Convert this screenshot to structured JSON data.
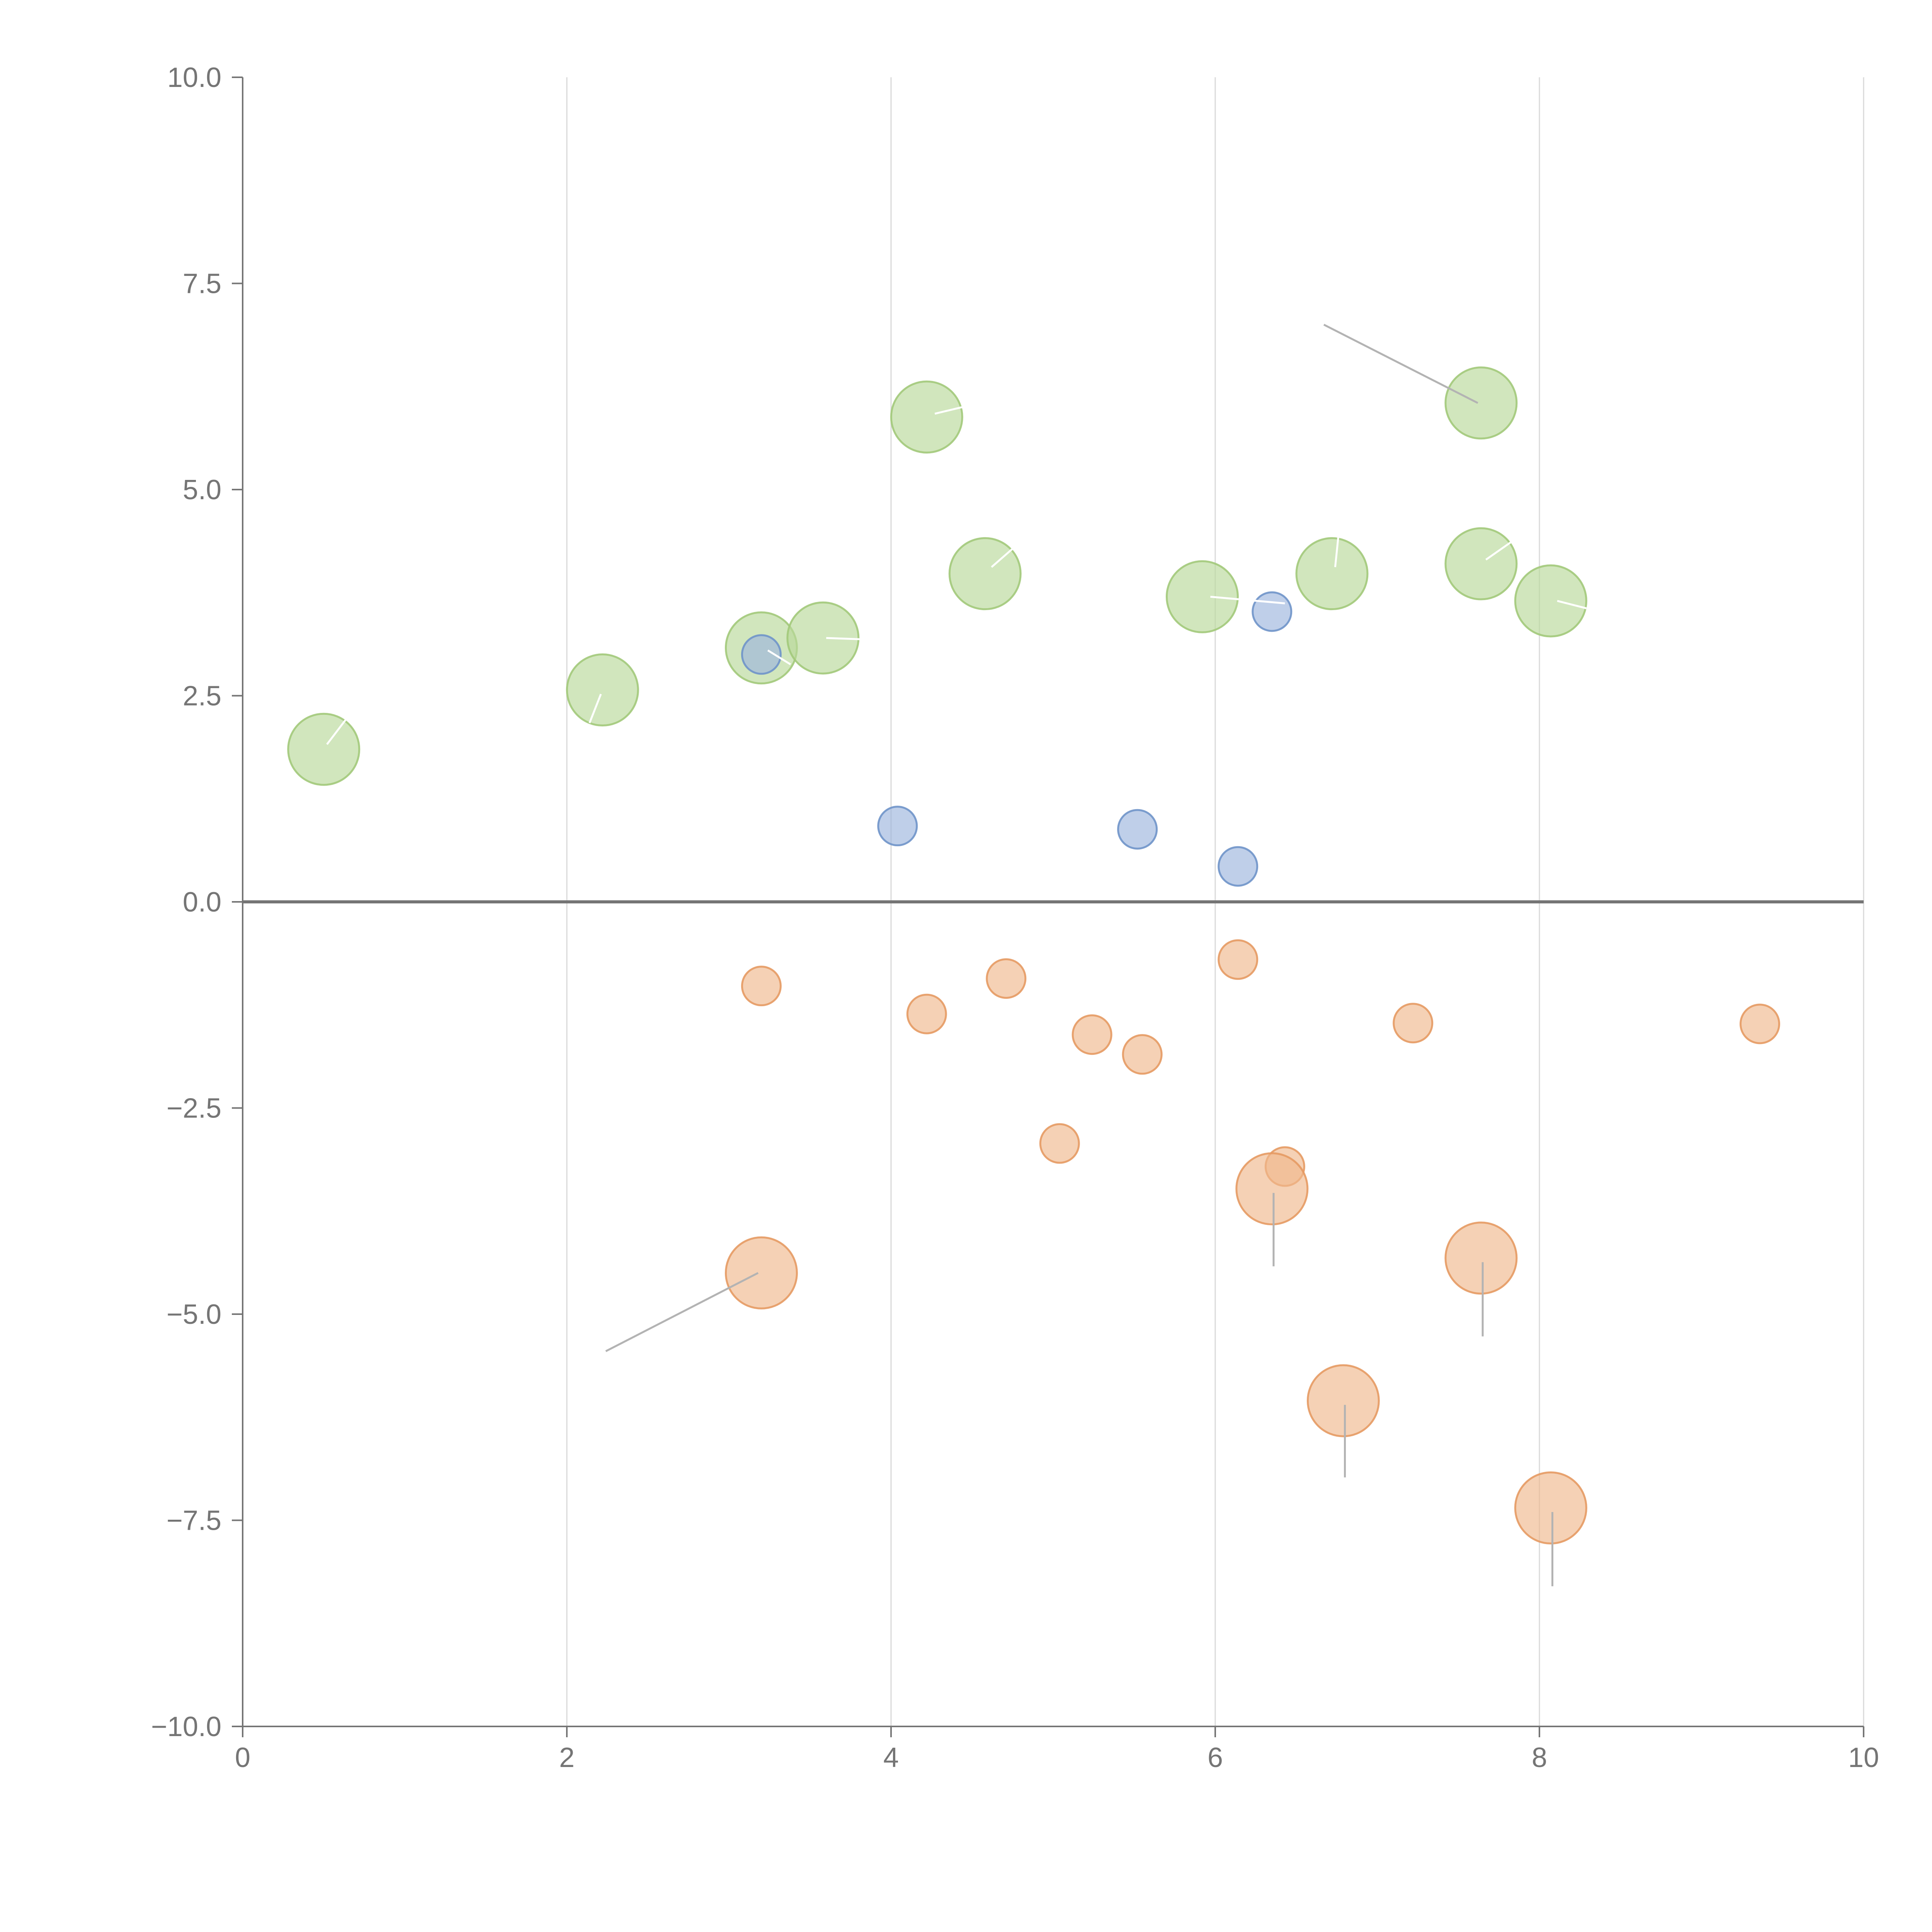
{
  "chart_data": {
    "type": "scatter",
    "title": "",
    "xlabel": "",
    "ylabel": "",
    "xlim": [
      0,
      10
    ],
    "ylim": [
      -10,
      10
    ],
    "grid": "vertical",
    "x_ticks": [
      0,
      2,
      4,
      6,
      8,
      10
    ],
    "y_ticks": [
      10.0,
      7.5,
      5.0,
      2.5,
      0.0,
      -2.5,
      -5.0,
      -7.5,
      -10.0
    ],
    "x_tick_labels": [
      "0",
      "2",
      "4",
      "6",
      "8",
      "10"
    ],
    "y_tick_labels": [
      "10.0",
      "7.5",
      "5.0",
      "2.5",
      "0.0",
      "−2.5",
      "−5.0",
      "−7.5",
      "−10.0"
    ],
    "colors": {
      "green": "#b9d89a",
      "green_stroke": "#a2c97a",
      "blue": "#9db6dd",
      "blue_stroke": "#6f93c9",
      "orange": "#efb88e",
      "orange_stroke": "#e59a63",
      "axis": "#757575",
      "grid": "#d9d9d9",
      "inner_line": "#ffffff",
      "connector": "#b3b3b3"
    },
    "series": [
      {
        "name": "green",
        "size": "large",
        "points": [
          {
            "x": 0.5,
            "y": 1.85
          },
          {
            "x": 2.22,
            "y": 2.57
          },
          {
            "x": 3.2,
            "y": 3.08
          },
          {
            "x": 3.58,
            "y": 3.2
          },
          {
            "x": 4.22,
            "y": 5.88
          },
          {
            "x": 4.58,
            "y": 3.98
          },
          {
            "x": 5.92,
            "y": 3.7
          },
          {
            "x": 6.72,
            "y": 3.98
          },
          {
            "x": 7.64,
            "y": 6.05
          },
          {
            "x": 7.64,
            "y": 4.1
          },
          {
            "x": 8.07,
            "y": 3.65
          }
        ]
      },
      {
        "name": "blue",
        "size": "small",
        "points": [
          {
            "x": 3.2,
            "y": 3.0
          },
          {
            "x": 4.04,
            "y": 0.92
          },
          {
            "x": 5.52,
            "y": 0.88
          },
          {
            "x": 6.14,
            "y": 0.43
          },
          {
            "x": 6.35,
            "y": 3.52
          }
        ]
      },
      {
        "name": "orange_small",
        "size": "small",
        "points": [
          {
            "x": 3.2,
            "y": -1.02
          },
          {
            "x": 4.22,
            "y": -1.36
          },
          {
            "x": 4.71,
            "y": -0.93
          },
          {
            "x": 5.04,
            "y": -2.93
          },
          {
            "x": 5.24,
            "y": -1.61
          },
          {
            "x": 5.55,
            "y": -1.85
          },
          {
            "x": 6.14,
            "y": -0.7
          },
          {
            "x": 6.43,
            "y": -3.21
          },
          {
            "x": 7.22,
            "y": -1.47
          },
          {
            "x": 9.36,
            "y": -1.48
          }
        ]
      },
      {
        "name": "orange_large",
        "size": "large",
        "points": [
          {
            "x": 3.2,
            "y": -4.5
          },
          {
            "x": 6.35,
            "y": -3.48
          },
          {
            "x": 6.79,
            "y": -6.05
          },
          {
            "x": 7.64,
            "y": -4.32
          },
          {
            "x": 8.07,
            "y": -7.35
          }
        ]
      }
    ],
    "inner_lines": [
      {
        "x1": 0.52,
        "y1": 1.91,
        "x2": 0.64,
        "y2": 2.22
      },
      {
        "x1": 2.14,
        "y1": 2.17,
        "x2": 2.21,
        "y2": 2.52
      },
      {
        "x1": 3.24,
        "y1": 3.05,
        "x2": 3.38,
        "y2": 2.88
      },
      {
        "x1": 3.6,
        "y1": 3.2,
        "x2": 3.88,
        "y2": 3.18
      },
      {
        "x1": 4.27,
        "y1": 5.92,
        "x2": 4.44,
        "y2": 6.0
      },
      {
        "x1": 4.62,
        "y1": 4.06,
        "x2": 4.76,
        "y2": 4.3
      },
      {
        "x1": 5.97,
        "y1": 3.7,
        "x2": 6.43,
        "y2": 3.62
      },
      {
        "x1": 6.74,
        "y1": 4.06,
        "x2": 6.76,
        "y2": 4.44
      },
      {
        "x1": 7.67,
        "y1": 4.15,
        "x2": 7.83,
        "y2": 4.37
      },
      {
        "x1": 8.11,
        "y1": 3.65,
        "x2": 8.29,
        "y2": 3.56
      }
    ],
    "connectors": [
      {
        "x1": 6.67,
        "y1": 7.0,
        "x2": 7.62,
        "y2": 6.05
      },
      {
        "x1": 2.24,
        "y1": -5.45,
        "x2": 3.18,
        "y2": -4.5
      },
      {
        "x1": 6.36,
        "y1": -3.53,
        "x2": 6.36,
        "y2": -4.42
      },
      {
        "x1": 7.65,
        "y1": -4.37,
        "x2": 7.65,
        "y2": -5.27
      },
      {
        "x1": 6.8,
        "y1": -6.1,
        "x2": 6.8,
        "y2": -6.98
      },
      {
        "x1": 8.08,
        "y1": -7.4,
        "x2": 8.08,
        "y2": -8.3
      }
    ]
  }
}
